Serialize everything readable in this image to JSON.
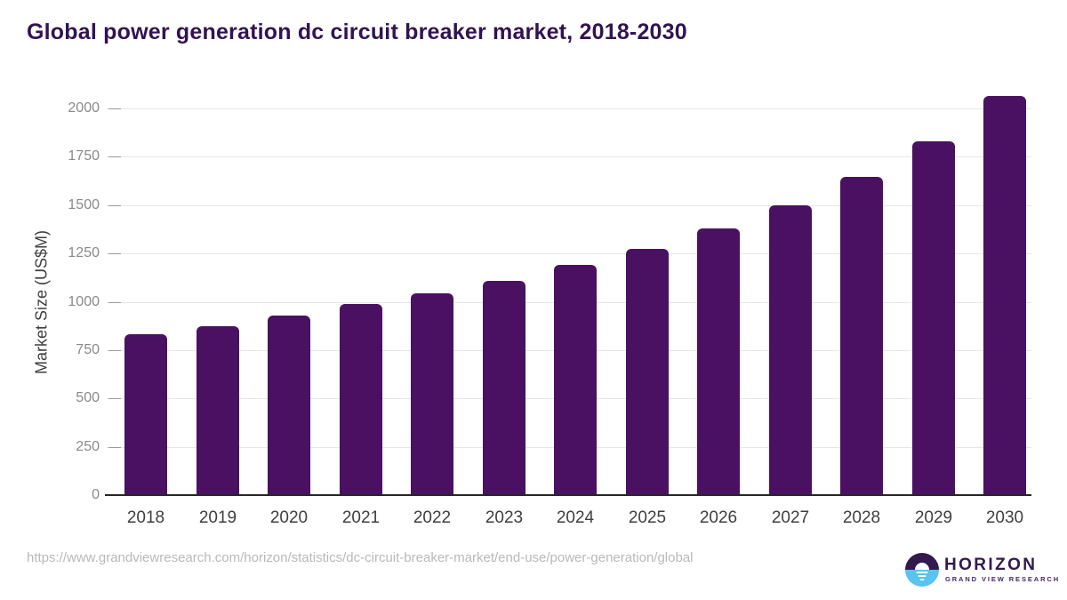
{
  "header": {
    "title": "Global power generation dc circuit breaker market, 2018-2030"
  },
  "footer": {
    "source_url": "https://www.grandviewresearch.com/horizon/statistics/dc-circuit-breaker-market/end-use/power-generation/global",
    "logo": {
      "brand": "HORIZON",
      "subtitle": "GRAND VIEW RESEARCH",
      "mark": "sun-over-water-icon"
    }
  },
  "colors": {
    "background": "#ffffff",
    "title_text": "#321352",
    "bar": "#4a1162",
    "gridline": "#e7e7e7",
    "axis_line": "#262626",
    "y_tick_label": "#8a8a8a",
    "y_tick_dash": "#9a9a9a",
    "x_tick_label": "#3f3f3f",
    "y_axis_title": "#3f3f3f",
    "source_url_text": "#b9b9b9",
    "logo_purple": "#33194e",
    "logo_subtitle_purple": "#45246a",
    "logo_blue": "#58c4f0"
  },
  "chart_data": {
    "type": "bar",
    "title": "Global power generation dc circuit breaker market, 2018-2030",
    "xlabel": "",
    "ylabel": "Market Size (US$M)",
    "categories": [
      "2018",
      "2019",
      "2020",
      "2021",
      "2022",
      "2023",
      "2024",
      "2025",
      "2026",
      "2027",
      "2028",
      "2029",
      "2030"
    ],
    "values": [
      830,
      875,
      930,
      990,
      1045,
      1110,
      1190,
      1275,
      1380,
      1500,
      1645,
      1830,
      2065
    ],
    "series_name": "Market Size (US$M)",
    "yticks": [
      0,
      250,
      500,
      750,
      1000,
      1250,
      1500,
      1750,
      2000
    ],
    "ylim": [
      0,
      2100
    ],
    "grid": true,
    "legend_position": "none",
    "bar_corner_radius": "rounded-top"
  }
}
